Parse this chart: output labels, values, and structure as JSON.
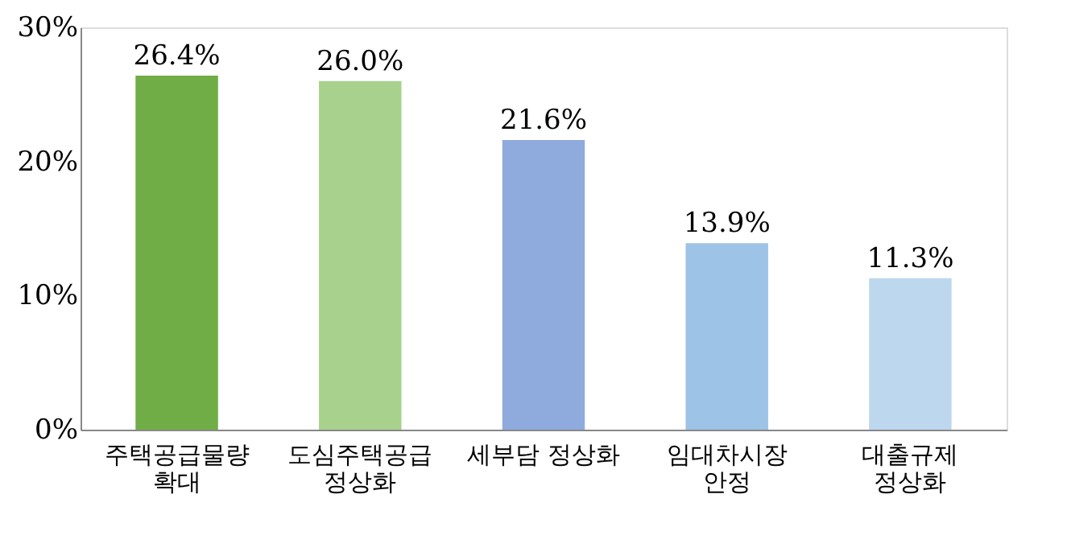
{
  "chart_data": {
    "type": "bar",
    "categories": [
      "주택공급물량\n확대",
      "도심주택공급\n정상화",
      "세부담  정상화",
      "임대차시장\n안정",
      "대출규제\n정상화"
    ],
    "values": [
      26.4,
      26.0,
      21.6,
      13.9,
      11.3
    ],
    "colors": [
      "#70ad47",
      "#a9d18e",
      "#8faadc",
      "#9dc3e6",
      "#bdd7ee"
    ],
    "value_labels": [
      "26.4%",
      "26.0%",
      "21.6%",
      "13.9%",
      "11.3%"
    ],
    "ylim": [
      0,
      30
    ],
    "yticks": [
      {
        "value": 0,
        "label": "0%"
      },
      {
        "value": 10,
        "label": "10%"
      },
      {
        "value": 20,
        "label": "20%"
      },
      {
        "value": 30,
        "label": "30%"
      }
    ],
    "grid": false
  }
}
